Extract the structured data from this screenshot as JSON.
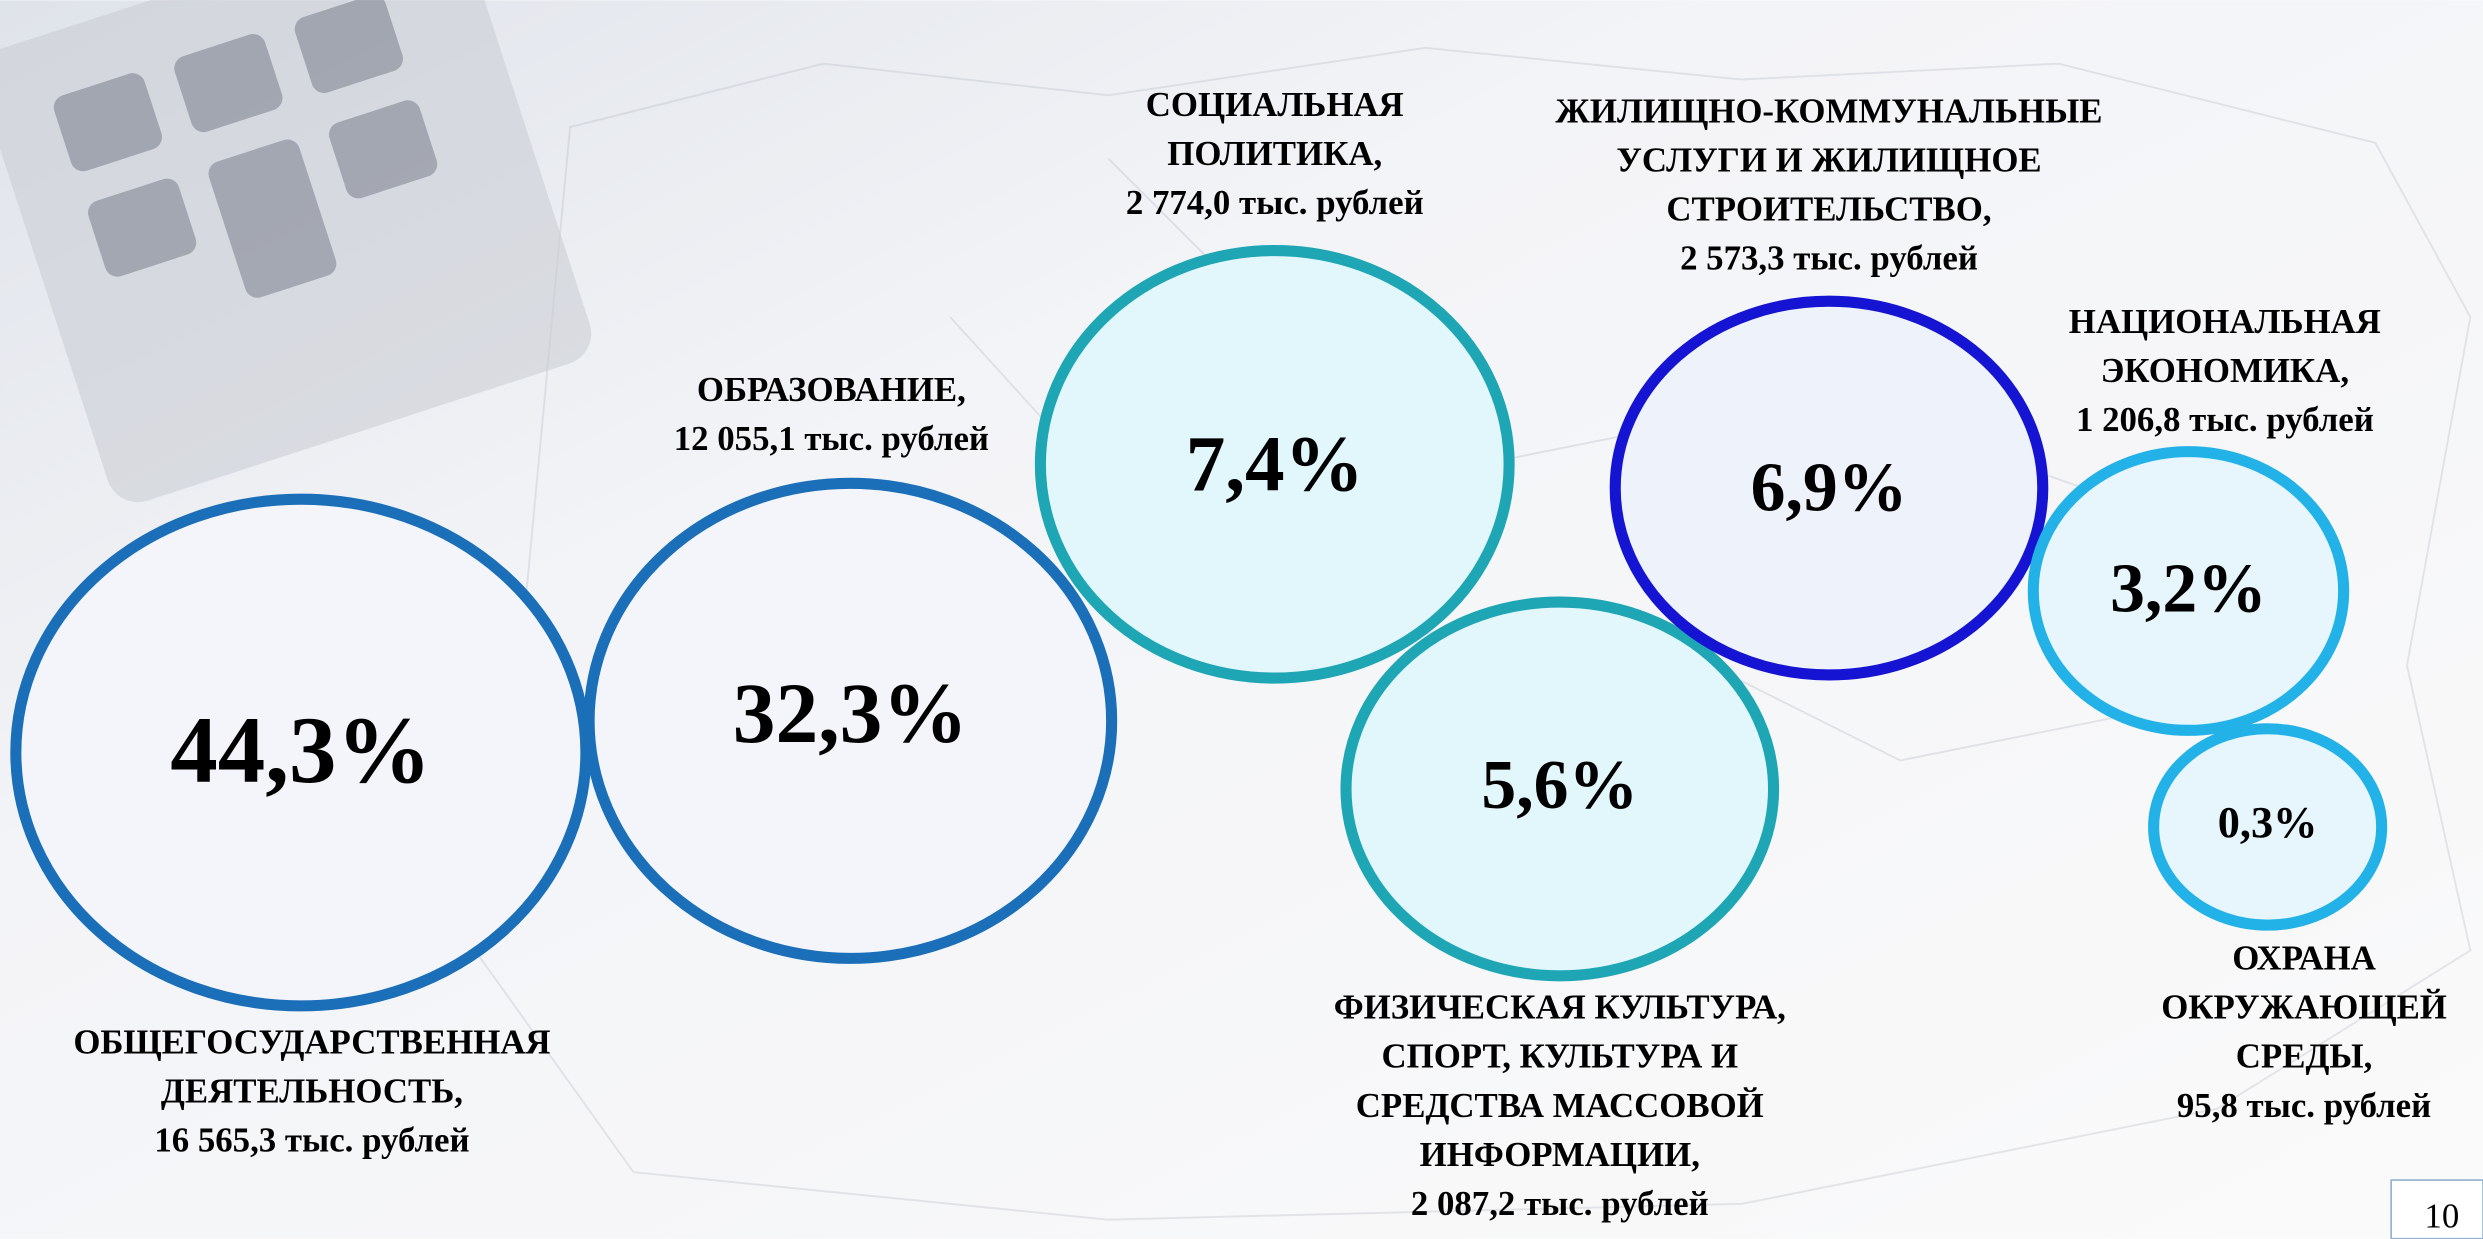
{
  "slide": {
    "items": [
      {
        "label_lines": [
          "ОБЩЕГОСУДАРСТВЕННАЯ",
          "ДЕЯТЕЛЬНОСТЬ,"
        ],
        "amount": "16 565,3 тыс. рублей",
        "percent": "44,3%"
      },
      {
        "label_lines": [
          "ОБРАЗОВАНИЕ,"
        ],
        "amount": "12 055,1 тыс. рублей",
        "percent": "32,3%"
      },
      {
        "label_lines": [
          "СОЦИАЛЬНАЯ",
          "ПОЛИТИКА,"
        ],
        "amount": "2 774,0 тыс. рублей",
        "percent": "7,4%"
      },
      {
        "label_lines": [
          "ЖИЛИЩНО-КОММУНАЛЬНЫЕ",
          "УСЛУГИ И ЖИЛИЩНОЕ",
          "СТРОИТЕЛЬСТВО,"
        ],
        "amount": "2 573,3 тыс. рублей",
        "percent": "6,9%"
      },
      {
        "label_lines": [
          "ФИЗИЧЕСКАЯ КУЛЬТУРА,",
          "СПОРТ, КУЛЬТУРА И",
          "СРЕДСТВА МАССОВОЙ",
          "ИНФОРМАЦИИ,"
        ],
        "amount": "2 087,2 тыс. рублей",
        "percent": "5,6%"
      },
      {
        "label_lines": [
          "НАЦИОНАЛЬНАЯ",
          "ЭКОНОМИКА,"
        ],
        "amount": "1 206,8 тыс. рублей",
        "percent": "3,2%"
      },
      {
        "label_lines": [
          "ОХРАНА",
          "ОКРУЖАЮЩЕЙ",
          "СРЕДЫ,"
        ],
        "amount": "95,8 тыс. рублей",
        "percent": "0,3%"
      }
    ],
    "page_number": "10"
  }
}
